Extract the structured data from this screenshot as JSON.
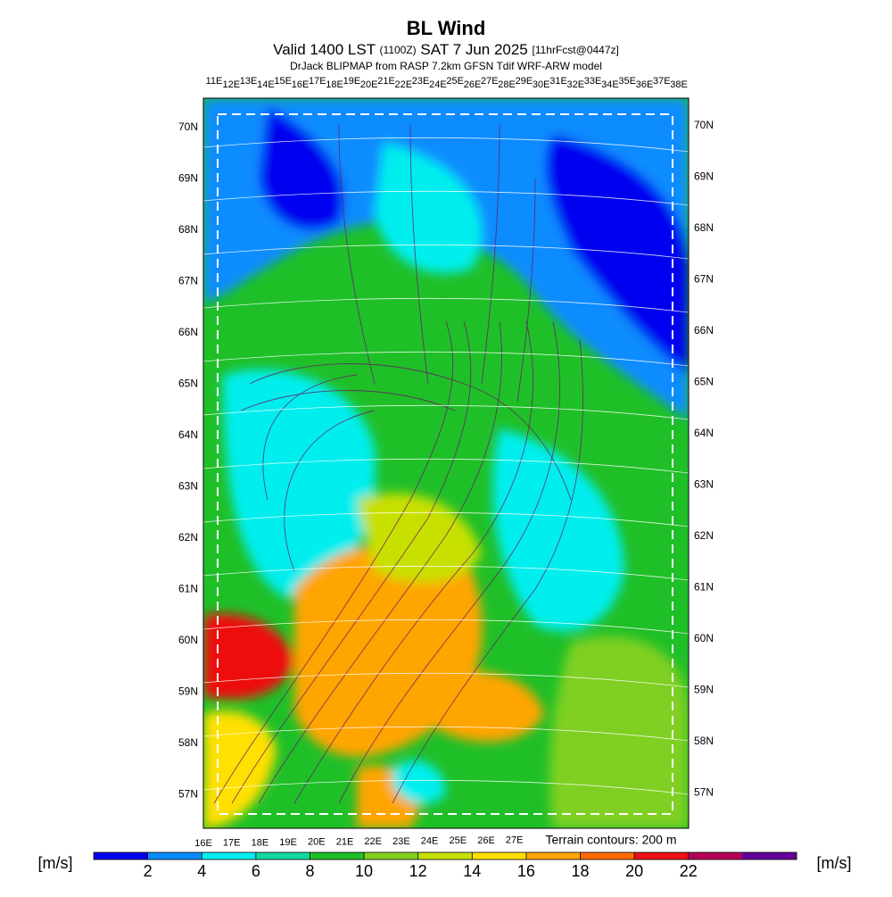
{
  "header": {
    "title": "BL Wind",
    "valid": [
      "Valid 1400 LST",
      "(1100Z)",
      "SAT 7 Jun 2025",
      "[11hrFcst@0447z]"
    ],
    "source": "DrJack BLIPMAP from RASP 7.2km GFSN Tdif WRF-ARW model"
  },
  "map": {
    "lat_labels": [
      "70N",
      "69N",
      "68N",
      "67N",
      "66N",
      "65N",
      "64N",
      "63N",
      "62N",
      "61N",
      "60N",
      "59N",
      "58N",
      "57N"
    ],
    "top_lon_labels": [
      "11E",
      "12E",
      "13E",
      "14E",
      "15E",
      "16E",
      "17E",
      "18E",
      "19E",
      "20E",
      "21E",
      "22E",
      "23E",
      "24E",
      "25E",
      "26E",
      "27E",
      "28E",
      "29E",
      "30E",
      "31E",
      "32E",
      "33E",
      "34E",
      "35E",
      "36E",
      "37E",
      "38E"
    ],
    "bottom_lon_labels": [
      "16E",
      "17E",
      "18E",
      "19E",
      "20E",
      "21E",
      "22E",
      "23E",
      "24E",
      "25E",
      "26E",
      "27E"
    ],
    "terrain_note": "Terrain contours: 200 m"
  },
  "colorbar": {
    "unit": "[m/s]",
    "colors": [
      "#0000f0",
      "#0a8cff",
      "#00eeee",
      "#10d9a0",
      "#1fbf28",
      "#7fd020",
      "#c8e000",
      "#ffe000",
      "#ffa500",
      "#ff6a00",
      "#ee1010",
      "#b4005a",
      "#640096"
    ],
    "ticks": [
      2,
      4,
      6,
      8,
      10,
      12,
      14,
      16,
      18,
      20,
      22
    ]
  }
}
